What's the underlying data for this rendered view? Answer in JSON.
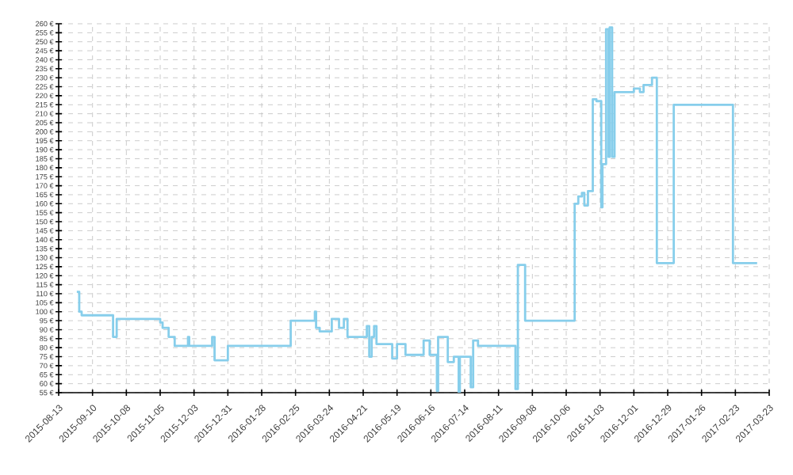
{
  "chart_data": {
    "type": "step",
    "color": "#87ceeb",
    "grid": true,
    "line_style": "solid",
    "marker": "none",
    "x": [
      "2015-08-28",
      "2015-08-30",
      "2015-09-01",
      "2015-09-27",
      "2015-09-30",
      "2015-11-05",
      "2015-11-07",
      "2015-11-12",
      "2015-11-17",
      "2015-11-28",
      "2015-11-29",
      "2015-12-18",
      "2015-12-20",
      "2015-12-31",
      "2016-02-21",
      "2016-03-12",
      "2016-03-13",
      "2016-03-16",
      "2016-03-26",
      "2016-04-01",
      "2016-04-05",
      "2016-04-08",
      "2016-04-24",
      "2016-04-26",
      "2016-04-28",
      "2016-04-30",
      "2016-05-02",
      "2016-05-15",
      "2016-05-19",
      "2016-05-26",
      "2016-06-10",
      "2016-06-15",
      "2016-06-21",
      "2016-06-22",
      "2016-06-30",
      "2016-07-05",
      "2016-07-09",
      "2016-07-10",
      "2016-07-19",
      "2016-07-21",
      "2016-07-25",
      "2016-08-25",
      "2016-08-27",
      "2016-09-02",
      "2016-10-13",
      "2016-10-16",
      "2016-10-19",
      "2016-10-21",
      "2016-10-24",
      "2016-10-28",
      "2016-10-31",
      "2016-11-04",
      "2016-11-05",
      "2016-11-08",
      "2016-11-10",
      "2016-11-11",
      "2016-11-13",
      "2016-11-15",
      "2016-12-01",
      "2016-12-06",
      "2016-12-09",
      "2016-12-16",
      "2016-12-20",
      "2017-01-03",
      "2017-02-21",
      "2017-03-13"
    ],
    "values": [
      111,
      100,
      98,
      86,
      96,
      94,
      91,
      86,
      81,
      86,
      81,
      86,
      73,
      81,
      95,
      100,
      91,
      89,
      96,
      91,
      96,
      86,
      92,
      75,
      86,
      92,
      82,
      74,
      82,
      76,
      84,
      76,
      56,
      86,
      72,
      75,
      55,
      75,
      58,
      84,
      81,
      57,
      126,
      95,
      160,
      164,
      166,
      159,
      167,
      218,
      217,
      158,
      182,
      257,
      186,
      258,
      186,
      222,
      224,
      222,
      226,
      230,
      127,
      215,
      127,
      127
    ],
    "xlim": [
      "2015-08-13",
      "2017-03-23"
    ],
    "xticks": [
      "2015-08-13",
      "2015-09-10",
      "2015-10-08",
      "2015-11-05",
      "2015-12-03",
      "2015-12-31",
      "2016-01-28",
      "2016-02-25",
      "2016-03-24",
      "2016-04-21",
      "2016-05-19",
      "2016-06-16",
      "2016-07-14",
      "2016-08-11",
      "2016-09-08",
      "2016-10-06",
      "2016-11-03",
      "2016-12-01",
      "2016-12-29",
      "2017-01-26",
      "2017-02-23",
      "2017-03-23"
    ],
    "ylim": [
      55,
      260
    ],
    "yticks": [
      {
        "value": 55,
        "label": "55 €"
      },
      {
        "value": 60,
        "label": "60 €"
      },
      {
        "value": 65,
        "label": "65 €"
      },
      {
        "value": 70,
        "label": "70 €"
      },
      {
        "value": 75,
        "label": "75 €"
      },
      {
        "value": 80,
        "label": "80 €"
      },
      {
        "value": 85,
        "label": "85 €"
      },
      {
        "value": 90,
        "label": "90 €"
      },
      {
        "value": 95,
        "label": "95 €"
      },
      {
        "value": 100,
        "label": "100 €"
      },
      {
        "value": 105,
        "label": "105 €"
      },
      {
        "value": 110,
        "label": "110 €"
      },
      {
        "value": 115,
        "label": "115 €"
      },
      {
        "value": 120,
        "label": "120 €"
      },
      {
        "value": 125,
        "label": "125 €"
      },
      {
        "value": 130,
        "label": "130 €"
      },
      {
        "value": 135,
        "label": "135 €"
      },
      {
        "value": 140,
        "label": "140 €"
      },
      {
        "value": 145,
        "label": "145 €"
      },
      {
        "value": 150,
        "label": "150 €"
      },
      {
        "value": 155,
        "label": "155 €"
      },
      {
        "value": 160,
        "label": "160 €"
      },
      {
        "value": 165,
        "label": "165 €"
      },
      {
        "value": 170,
        "label": "170 €"
      },
      {
        "value": 175,
        "label": "175 €"
      },
      {
        "value": 180,
        "label": "180 €"
      },
      {
        "value": 185,
        "label": "185 €"
      },
      {
        "value": 190,
        "label": "190 €"
      },
      {
        "value": 195,
        "label": "195 €"
      },
      {
        "value": 200,
        "label": "200 €"
      },
      {
        "value": 205,
        "label": "205 €"
      },
      {
        "value": 210,
        "label": "210 €"
      },
      {
        "value": 215,
        "label": "215 €"
      },
      {
        "value": 220,
        "label": "220 €"
      },
      {
        "value": 225,
        "label": "225 €"
      },
      {
        "value": 230,
        "label": "230 €"
      },
      {
        "value": 235,
        "label": "235 €"
      },
      {
        "value": 240,
        "label": "240 €"
      },
      {
        "value": 245,
        "label": "245 €"
      },
      {
        "value": 250,
        "label": "250 €"
      },
      {
        "value": 255,
        "label": "255 €"
      },
      {
        "value": 260,
        "label": "260 €"
      }
    ]
  }
}
